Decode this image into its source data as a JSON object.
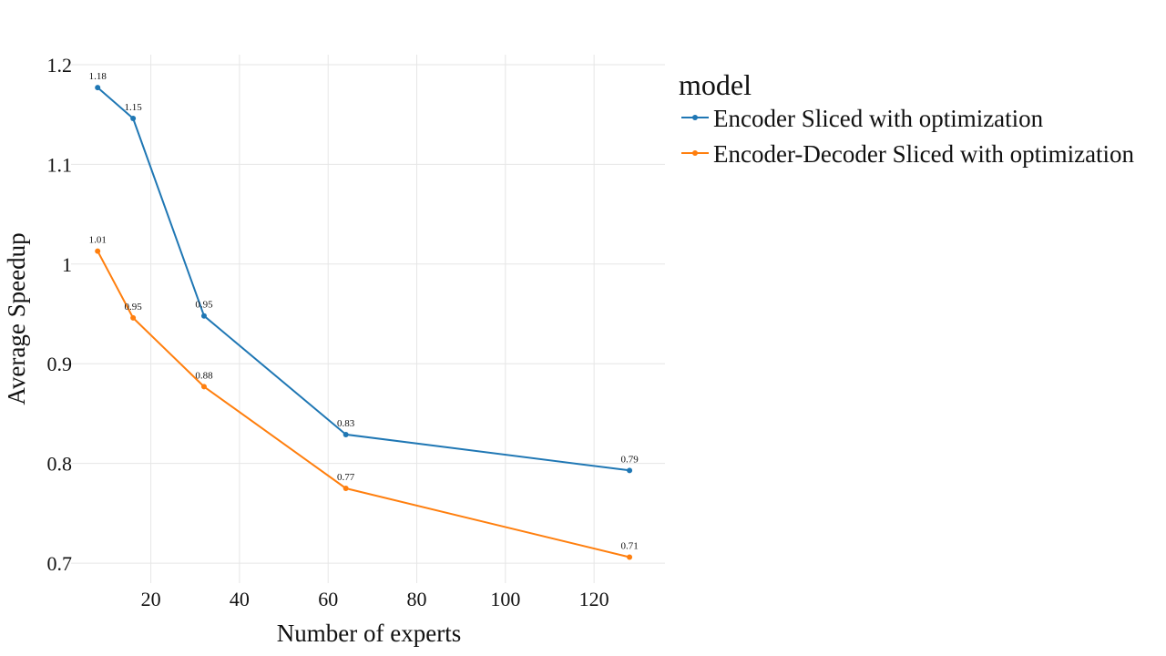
{
  "chart_data": {
    "type": "line",
    "xlabel": "Number of experts",
    "ylabel": "Average Speedup",
    "xlim": [
      2,
      136
    ],
    "ylim": [
      0.68,
      1.21
    ],
    "xticks": [
      20,
      40,
      60,
      80,
      100,
      120
    ],
    "yticks": [
      0.7,
      0.8,
      0.9,
      1.0,
      1.1,
      1.2
    ],
    "ytick_labels": [
      "0.7",
      "0.8",
      "0.9",
      "1",
      "1.1",
      "1.2"
    ],
    "grid": true,
    "legend": {
      "title": "model",
      "placement": "top-right"
    },
    "series": [
      {
        "name": "Encoder Sliced with optimization",
        "color": "#1f77b4",
        "x": [
          8,
          16,
          32,
          64,
          128
        ],
        "y": [
          1.177,
          1.146,
          0.948,
          0.829,
          0.793
        ],
        "labels": [
          "1.18",
          "1.15",
          "0.95",
          "0.83",
          "0.79"
        ]
      },
      {
        "name": "Encoder-Decoder Sliced with optimization",
        "color": "#ff7f0e",
        "x": [
          8,
          16,
          32,
          64,
          128
        ],
        "y": [
          1.013,
          0.946,
          0.877,
          0.775,
          0.706
        ],
        "labels": [
          "1.01",
          "0.95",
          "0.88",
          "0.77",
          "0.71"
        ]
      }
    ]
  }
}
